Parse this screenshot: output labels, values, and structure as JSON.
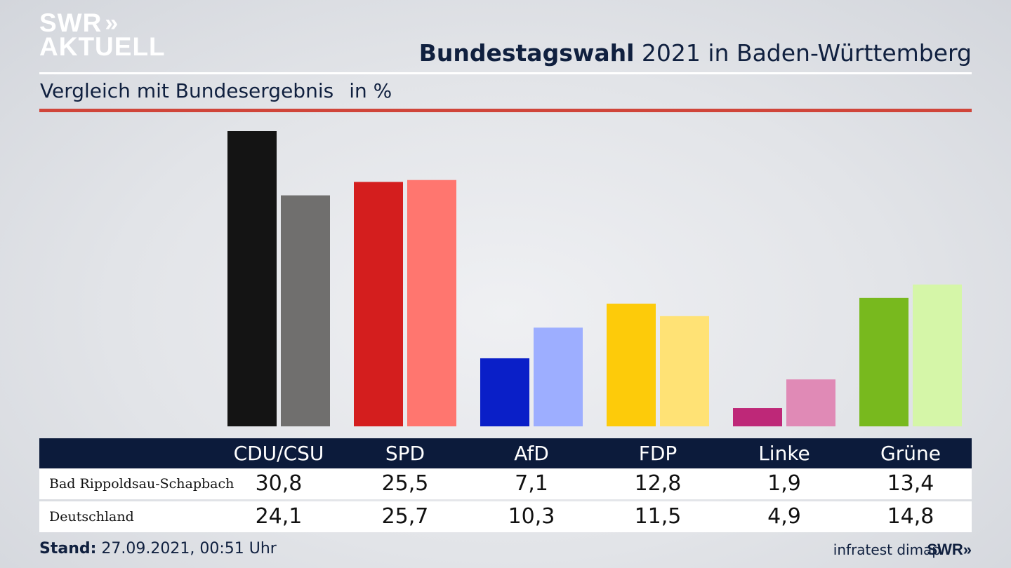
{
  "logo": {
    "line1": "SWR",
    "chevrons": "»",
    "line2": "AKTUELL"
  },
  "header": {
    "title_bold": "Bundestagswahl",
    "title_rest": " 2021 in Baden-Württemberg"
  },
  "subtitle": {
    "text": "Vergleich mit Bundesergebnis",
    "unit": "in %"
  },
  "footer": {
    "stand_label": "Stand:",
    "stand_value": " 27.09.2021, 00:51 Uhr",
    "source": "infratest dimap",
    "brand": "SWR»"
  },
  "chart_data": {
    "type": "bar",
    "categories": [
      "CDU/CSU",
      "SPD",
      "AfD",
      "FDP",
      "Linke",
      "Grüne"
    ],
    "series": [
      {
        "name": "Bad Rippoldsau-Schapbach",
        "values": [
          30.8,
          25.5,
          7.1,
          12.8,
          1.9,
          13.4
        ],
        "colors": [
          "#141414",
          "#d41e1e",
          "#0a1fc8",
          "#fdcb0a",
          "#be2878",
          "#78b91e"
        ]
      },
      {
        "name": "Deutschland",
        "values": [
          24.1,
          25.7,
          10.3,
          11.5,
          4.9,
          14.8
        ],
        "colors": [
          "#706f6e",
          "#ff766f",
          "#9daeff",
          "#ffe275",
          "#e08ab6",
          "#d5f6a8"
        ]
      }
    ],
    "ylim": [
      0,
      30.8
    ],
    "grid": false,
    "legend": "table-below"
  }
}
